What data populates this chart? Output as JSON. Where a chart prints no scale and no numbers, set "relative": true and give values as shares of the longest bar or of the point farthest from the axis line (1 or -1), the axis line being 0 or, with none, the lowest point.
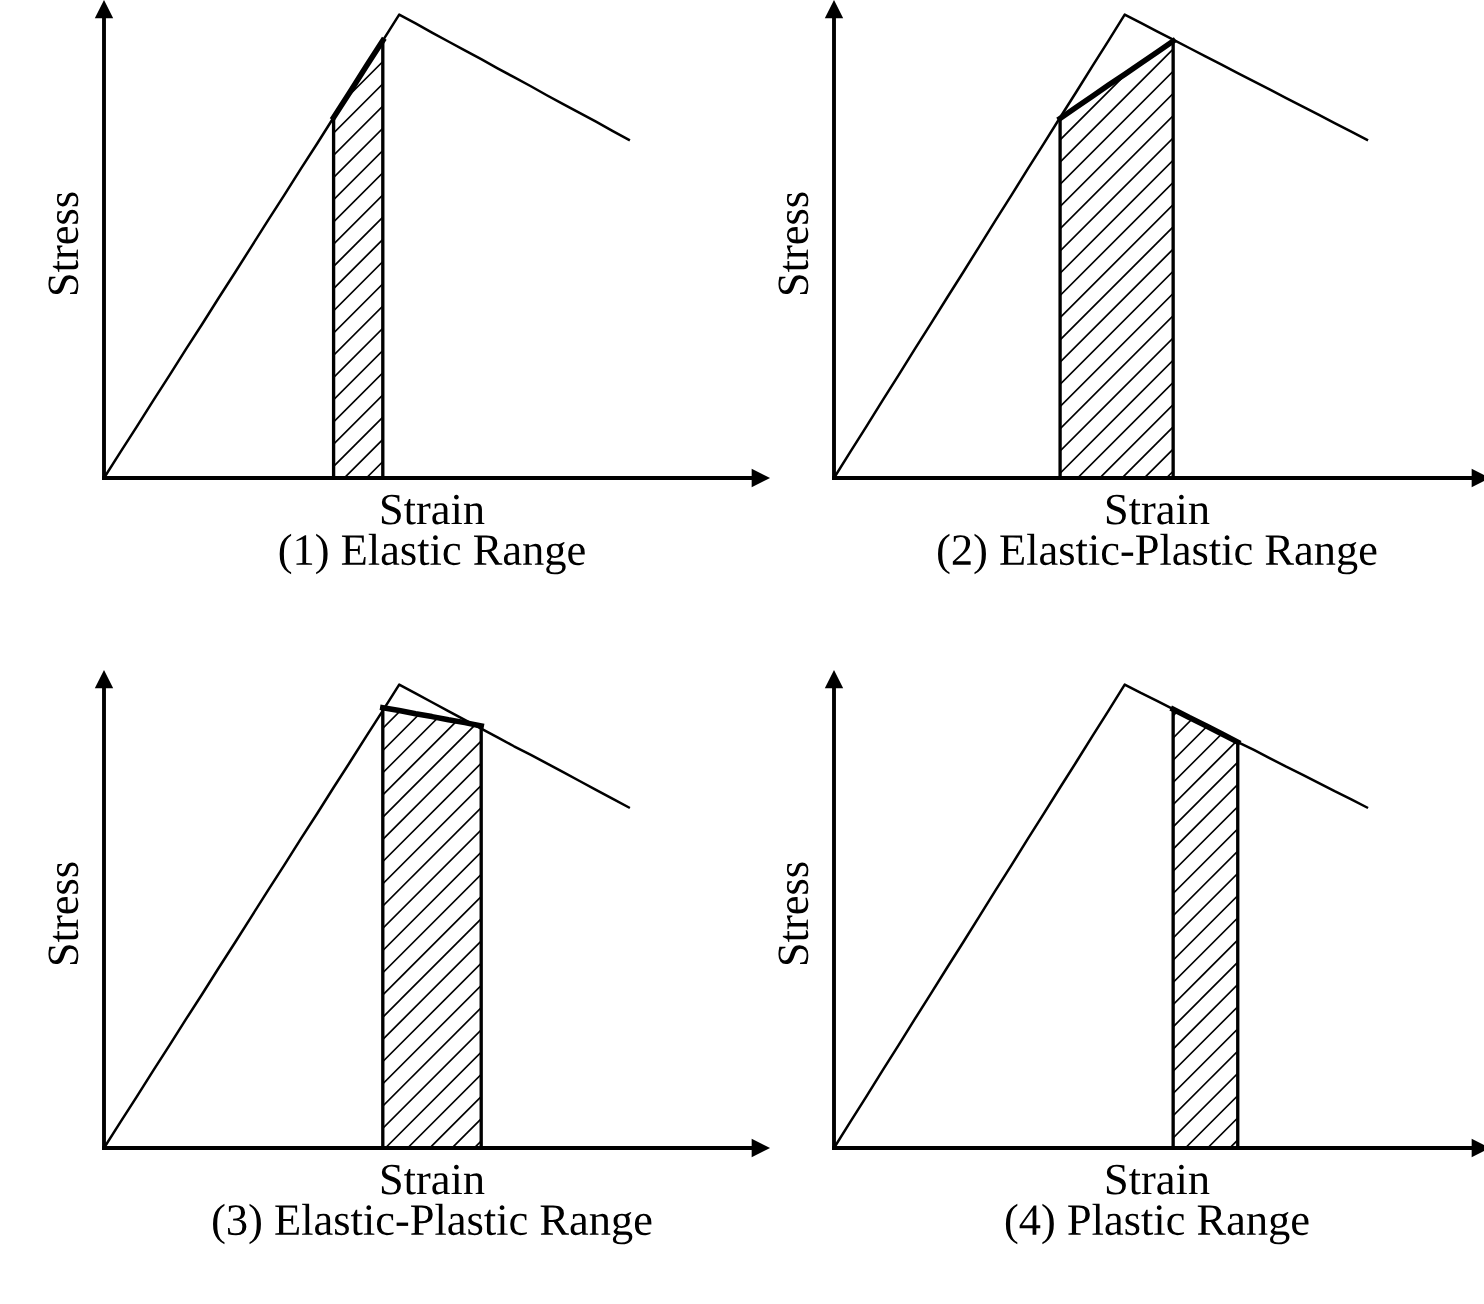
{
  "chart_data": [
    {
      "type": "line",
      "title": "(1) Elastic Range",
      "xlabel": "Strain",
      "ylabel": "Stress",
      "relative": true,
      "categories": [
        null,
        null,
        null,
        null,
        null,
        null,
        null,
        null,
        null,
        null,
        null,
        null,
        null,
        null,
        null,
        null,
        null,
        null,
        null,
        null,
        null,
        null,
        null,
        null,
        null,
        null,
        null,
        null,
        null,
        null,
        null,
        null,
        null,
        null,
        null,
        null,
        null,
        null,
        null,
        null,
        null
      ],
      "series": [
        {
          "color": "#000000",
          "values": [
            0,
            0.056,
            0.111,
            0.167,
            0.222,
            0.278,
            0.333,
            0.389,
            0.444,
            0.5,
            0.556,
            0.611,
            0.667,
            0.722,
            0.778,
            0.833,
            0.889,
            0.944,
            1,
            0.981,
            0.961,
            0.942,
            0.923,
            0.904,
            0.884,
            0.865,
            0.846,
            0.826,
            0.807,
            0.788,
            0.769,
            0.749,
            0.73,
            null,
            null,
            null,
            null,
            null,
            null,
            null,
            null
          ]
        },
        {
          "type": "area",
          "color": "#000000",
          "values": [
            null,
            null,
            null,
            null,
            null,
            null,
            null,
            null,
            null,
            null,
            null,
            null,
            null,
            null,
            0.778,
            0.833,
            0.889,
            0.944,
            null,
            null,
            null,
            null,
            null,
            null,
            null,
            null,
            null,
            null,
            null,
            null,
            null,
            null,
            null,
            null,
            null,
            null,
            null,
            null,
            null,
            null,
            null
          ]
        }
      ]
    },
    {
      "type": "line",
      "title": "(2) Elastic-Plastic Range",
      "xlabel": "Strain",
      "ylabel": "Stress",
      "relative": true,
      "categories": [
        null,
        null,
        null,
        null,
        null,
        null,
        null,
        null,
        null,
        null,
        null,
        null,
        null,
        null,
        null,
        null,
        null,
        null,
        null,
        null,
        null,
        null,
        null,
        null,
        null,
        null,
        null,
        null,
        null,
        null,
        null,
        null,
        null,
        null,
        null,
        null,
        null,
        null,
        null,
        null,
        null
      ],
      "series": [
        {
          "color": "#000000",
          "values": [
            0,
            0.056,
            0.111,
            0.167,
            0.222,
            0.278,
            0.333,
            0.389,
            0.444,
            0.5,
            0.556,
            0.611,
            0.667,
            0.722,
            0.778,
            0.833,
            0.889,
            0.944,
            1,
            0.982,
            0.964,
            0.946,
            0.928,
            0.91,
            0.892,
            0.874,
            0.856,
            0.838,
            0.82,
            0.802,
            0.784,
            0.766,
            0.748,
            0.73,
            null,
            null,
            null,
            null,
            null,
            null,
            null
          ]
        },
        {
          "type": "area",
          "color": "#000000",
          "values": [
            null,
            null,
            null,
            null,
            null,
            null,
            null,
            null,
            null,
            null,
            null,
            null,
            null,
            null,
            0.776,
            0.8,
            0.824,
            0.848,
            0.871,
            0.895,
            0.919,
            0.943,
            null,
            null,
            null,
            null,
            null,
            null,
            null,
            null,
            null,
            null,
            null,
            null,
            null,
            null,
            null,
            null,
            null,
            null,
            null
          ]
        }
      ]
    },
    {
      "type": "line",
      "title": "(3) Elastic-Plastic Range",
      "xlabel": "Strain",
      "ylabel": "Stress",
      "relative": true,
      "categories": [
        null,
        null,
        null,
        null,
        null,
        null,
        null,
        null,
        null,
        null,
        null,
        null,
        null,
        null,
        null,
        null,
        null,
        null,
        null,
        null,
        null,
        null,
        null,
        null,
        null,
        null,
        null,
        null,
        null,
        null,
        null,
        null,
        null,
        null,
        null,
        null,
        null,
        null,
        null,
        null,
        null
      ],
      "series": [
        {
          "color": "#000000",
          "values": [
            0,
            0.056,
            0.111,
            0.167,
            0.222,
            0.278,
            0.333,
            0.389,
            0.444,
            0.5,
            0.556,
            0.611,
            0.667,
            0.722,
            0.778,
            0.833,
            0.889,
            0.944,
            1,
            0.981,
            0.962,
            0.943,
            0.924,
            0.905,
            0.886,
            0.867,
            0.849,
            0.83,
            0.811,
            0.792,
            0.773,
            0.754,
            0.735,
            null,
            null,
            null,
            null,
            null,
            null,
            null,
            null
          ]
        },
        {
          "type": "area",
          "color": "#000000",
          "values": [
            null,
            null,
            null,
            null,
            null,
            null,
            null,
            null,
            null,
            null,
            null,
            null,
            null,
            null,
            null,
            null,
            null,
            0.95,
            0.944,
            0.937,
            0.931,
            0.924,
            0.918,
            0.911,
            null,
            null,
            null,
            null,
            null,
            null,
            null,
            null,
            null,
            null,
            null,
            null,
            null,
            null,
            null,
            null,
            null
          ]
        }
      ]
    },
    {
      "type": "line",
      "title": "(4) Plastic Range",
      "xlabel": "Strain",
      "ylabel": "Stress",
      "relative": true,
      "categories": [
        null,
        null,
        null,
        null,
        null,
        null,
        null,
        null,
        null,
        null,
        null,
        null,
        null,
        null,
        null,
        null,
        null,
        null,
        null,
        null,
        null,
        null,
        null,
        null,
        null,
        null,
        null,
        null,
        null,
        null,
        null,
        null,
        null,
        null,
        null,
        null,
        null,
        null,
        null,
        null,
        null
      ],
      "series": [
        {
          "color": "#000000",
          "values": [
            0,
            0.056,
            0.111,
            0.167,
            0.222,
            0.278,
            0.333,
            0.389,
            0.444,
            0.5,
            0.556,
            0.611,
            0.667,
            0.722,
            0.778,
            0.833,
            0.889,
            0.944,
            1,
            0.982,
            0.965,
            0.947,
            0.929,
            0.912,
            0.894,
            0.876,
            0.859,
            0.841,
            0.823,
            0.806,
            0.788,
            0.77,
            0.753,
            0.735,
            null,
            null,
            null,
            null,
            null,
            null,
            null
          ]
        },
        {
          "type": "area",
          "color": "#000000",
          "values": [
            null,
            null,
            null,
            null,
            null,
            null,
            null,
            null,
            null,
            null,
            null,
            null,
            null,
            null,
            null,
            null,
            null,
            null,
            null,
            null,
            null,
            0.947,
            0.929,
            0.912,
            0.894,
            0.876,
            null,
            null,
            null,
            null,
            null,
            null,
            null,
            null,
            null,
            null,
            null,
            null,
            null,
            null,
            null
          ]
        }
      ]
    }
  ]
}
